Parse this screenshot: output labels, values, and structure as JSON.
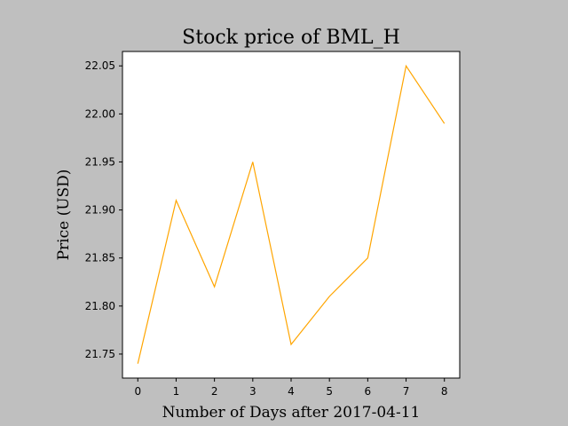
{
  "chart_data": {
    "type": "line",
    "title": "Stock price of BML_H",
    "xlabel": "Number of Days after 2017-04-11",
    "ylabel": "Price (USD)",
    "x": [
      0,
      1,
      2,
      3,
      4,
      5,
      6,
      7,
      8
    ],
    "series": [
      {
        "values": [
          21.74,
          21.91,
          21.82,
          21.95,
          21.76,
          21.81,
          21.85,
          22.05,
          21.99
        ],
        "color": "#ffa500"
      }
    ],
    "xlim": [
      -0.4,
      8.4
    ],
    "ylim": [
      21.725,
      22.065
    ],
    "xticks": [
      0,
      1,
      2,
      3,
      4,
      5,
      6,
      7,
      8
    ],
    "yticks": [
      21.75,
      21.8,
      21.85,
      21.9,
      21.95,
      22.0,
      22.05
    ],
    "ytick_labels": [
      "21.75",
      "21.80",
      "21.85",
      "21.90",
      "21.95",
      "22.00",
      "22.05"
    ],
    "grid": false,
    "colors": {
      "figure_background": "#bfbfbf",
      "plot_background": "#ffffff"
    }
  }
}
